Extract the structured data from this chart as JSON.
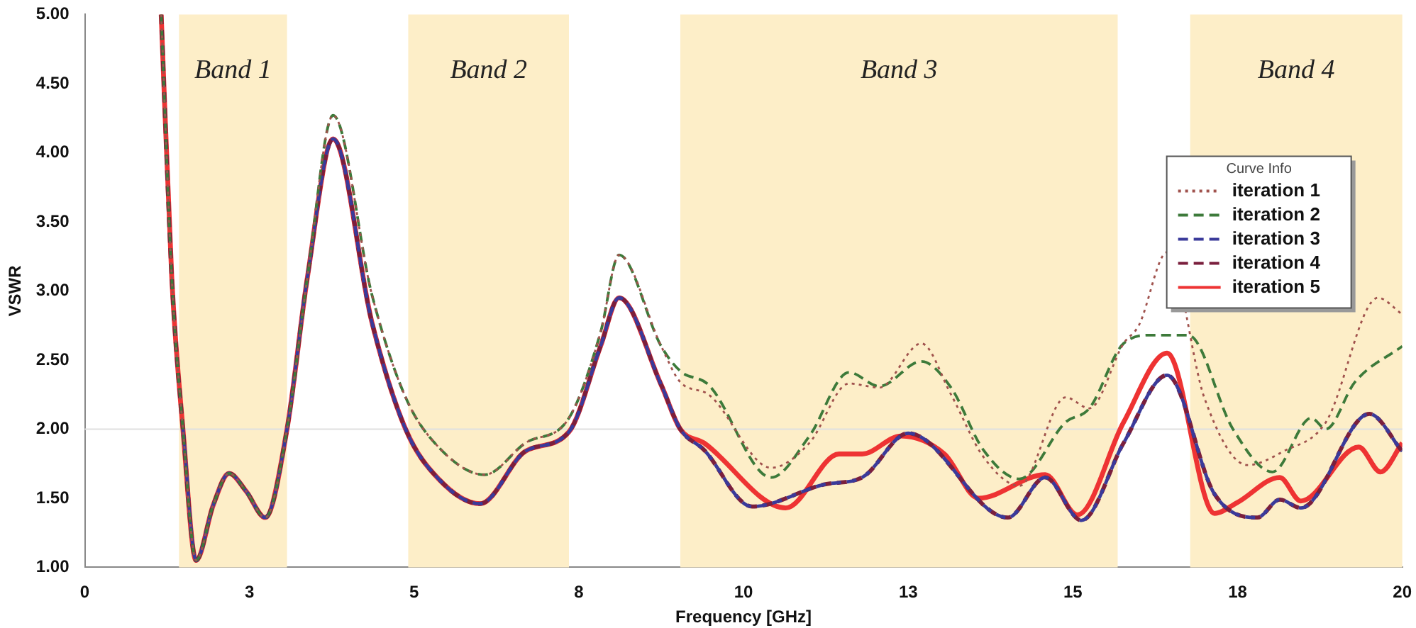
{
  "chart_data": {
    "type": "line",
    "xlabel": "Frequency [GHz]",
    "ylabel": "VSWR",
    "legend_title": "Curve Info",
    "legend": "top right",
    "grid": false,
    "marker": "none",
    "xlim": [
      0,
      20
    ],
    "xticks": [
      0,
      {
        "value": 2.5,
        "label": "3"
      },
      5,
      {
        "value": 7.5,
        "label": "8"
      },
      10,
      {
        "value": 12.5,
        "label": "13"
      },
      15,
      {
        "value": 17.5,
        "label": "18"
      },
      20
    ],
    "ylim": [
      1,
      5
    ],
    "yticks": [
      {
        "value": 1,
        "label": "1.00"
      },
      {
        "value": 1.5,
        "label": "1.50"
      },
      {
        "value": 2,
        "label": "2.00"
      },
      {
        "value": 2.5,
        "label": "2.50"
      },
      {
        "value": 3,
        "label": "3.00"
      },
      {
        "value": 3.5,
        "label": "3.50"
      },
      {
        "value": 4,
        "label": "4.00"
      },
      {
        "value": 4.5,
        "label": "4.50"
      },
      {
        "value": 5,
        "label": "5.00"
      }
    ],
    "bands": [
      {
        "axis": "x",
        "from": 1.43,
        "to": 3.07,
        "label": "Band 1",
        "color": "#fdeec8"
      },
      {
        "axis": "x",
        "from": 4.91,
        "to": 7.35,
        "label": "Band 2",
        "color": "#fdeec8"
      },
      {
        "axis": "x",
        "from": 9.04,
        "to": 15.68,
        "label": "Band 3",
        "color": "#fdeec8"
      },
      {
        "axis": "x",
        "from": 16.78,
        "to": 20,
        "label": "Band 4",
        "color": "#fdeec8"
      }
    ],
    "ref_lines": [
      {
        "axis": "y",
        "value": 2,
        "color": "#e0e0e0"
      }
    ],
    "series": [
      {
        "name": "iteration 1",
        "color": "#a0524d",
        "line_style": "dotted",
        "x": [
          1.16,
          1.32,
          1.49,
          1.69,
          1.95,
          2.19,
          2.45,
          2.74,
          3.07,
          3.38,
          3.77,
          4.36,
          4.87,
          5.37,
          6.07,
          6.69,
          7.35,
          7.83,
          8.11,
          8.75,
          9.04,
          9.47,
          10.42,
          11.0,
          11.6,
          12.06,
          12.7,
          13.15,
          13.64,
          14.19,
          14.89,
          15.25,
          15.77,
          16.0,
          16.43,
          17.0,
          17.65,
          18.2,
          18.84,
          19.63,
          20
        ],
        "values": [
          5.0,
          3.1,
          2.0,
          1.05,
          1.45,
          1.68,
          1.55,
          1.36,
          2.0,
          3.1,
          4.27,
          2.97,
          2.23,
          1.87,
          1.67,
          1.9,
          2.08,
          2.7,
          3.26,
          2.6,
          2.34,
          2.25,
          1.72,
          1.9,
          2.33,
          2.3,
          2.62,
          2.25,
          1.8,
          1.59,
          2.23,
          2.15,
          2.62,
          2.75,
          3.28,
          2.22,
          1.74,
          1.84,
          2.05,
          2.95,
          2.83
        ]
      },
      {
        "name": "iteration 2",
        "color": "#3d7a3a",
        "line_style": "dashed",
        "x": [
          1.16,
          1.32,
          1.49,
          1.69,
          1.95,
          2.19,
          2.45,
          2.74,
          3.07,
          3.38,
          3.77,
          4.36,
          4.87,
          5.37,
          6.07,
          6.69,
          7.35,
          7.83,
          8.11,
          8.75,
          9.04,
          9.47,
          10.42,
          11.0,
          11.6,
          12.06,
          12.7,
          13.15,
          13.64,
          14.19,
          14.89,
          15.25,
          15.77,
          16.2,
          16.75,
          17.43,
          18.03,
          18.62,
          18.84,
          19.28,
          20
        ],
        "values": [
          5.0,
          3.1,
          2.0,
          1.05,
          1.45,
          1.68,
          1.55,
          1.36,
          2.0,
          3.1,
          4.27,
          2.97,
          2.23,
          1.87,
          1.67,
          1.9,
          2.08,
          2.7,
          3.26,
          2.6,
          2.42,
          2.32,
          1.65,
          1.95,
          2.41,
          2.31,
          2.49,
          2.3,
          1.85,
          1.64,
          2.05,
          2.15,
          2.62,
          2.68,
          2.68,
          2.0,
          1.69,
          2.08,
          2.0,
          2.34,
          2.6
        ]
      },
      {
        "name": "iteration 3",
        "color": "#3a3a9a",
        "line_style": "dashed",
        "x": [
          1.49,
          1.69,
          1.95,
          2.19,
          2.45,
          2.74,
          3.07,
          3.38,
          3.77,
          4.36,
          4.87,
          5.37,
          6.0,
          6.69,
          7.35,
          7.83,
          8.11,
          8.75,
          9.04,
          9.4,
          10.13,
          11.23,
          11.8,
          12.5,
          14.01,
          14.58,
          15.13,
          15.77,
          16.43,
          17.15,
          17.8,
          18.14,
          18.46,
          19.5,
          20
        ],
        "values": [
          2.0,
          1.05,
          1.45,
          1.68,
          1.55,
          1.36,
          2.0,
          3.1,
          4.1,
          2.77,
          2.0,
          1.64,
          1.46,
          1.84,
          1.98,
          2.6,
          2.95,
          2.32,
          2.0,
          1.85,
          1.44,
          1.6,
          1.65,
          1.97,
          1.36,
          1.65,
          1.34,
          1.9,
          2.39,
          1.53,
          1.36,
          1.49,
          1.43,
          2.11,
          1.84
        ]
      },
      {
        "name": "iteration 4",
        "color": "#7a1f3d",
        "line_style": "dashed",
        "x": [
          1.16,
          1.32,
          1.49,
          1.69,
          1.95,
          2.19,
          2.45,
          2.74,
          3.07,
          3.38,
          3.77,
          4.36,
          4.87,
          5.37,
          6.0,
          6.69,
          7.35,
          7.83,
          8.11,
          8.75,
          9.04,
          9.4,
          10.13,
          11.23,
          11.8,
          12.5,
          14.01,
          14.58,
          15.13,
          15.77,
          16.43,
          17.15,
          17.8,
          18.14,
          18.46,
          19.5,
          20
        ],
        "values": [
          5.0,
          3.1,
          2.0,
          1.05,
          1.45,
          1.68,
          1.55,
          1.36,
          2.0,
          3.1,
          4.1,
          2.77,
          2.0,
          1.64,
          1.46,
          1.84,
          1.98,
          2.6,
          2.95,
          2.32,
          2.0,
          1.85,
          1.44,
          1.6,
          1.65,
          1.97,
          1.36,
          1.65,
          1.34,
          1.9,
          2.39,
          1.53,
          1.36,
          1.49,
          1.43,
          2.11,
          1.84
        ]
      },
      {
        "name": "iteration 5",
        "color": "#ee3333",
        "line_style": "solid",
        "x": [
          1.16,
          1.32,
          1.49,
          1.69,
          1.95,
          2.19,
          2.45,
          2.74,
          3.07,
          3.38,
          3.77,
          4.36,
          4.87,
          5.37,
          6.0,
          6.69,
          7.35,
          7.83,
          8.11,
          8.75,
          9.04,
          9.4,
          10.64,
          11.45,
          11.8,
          12.39,
          13.05,
          13.57,
          14.58,
          15.07,
          15.77,
          16.43,
          17.15,
          17.5,
          18.14,
          18.46,
          19.34,
          19.67,
          20
        ],
        "values": [
          5.0,
          3.1,
          2.0,
          1.05,
          1.45,
          1.68,
          1.55,
          1.36,
          2.0,
          3.1,
          4.1,
          2.77,
          2.0,
          1.64,
          1.46,
          1.84,
          1.98,
          2.6,
          2.95,
          2.32,
          2.0,
          1.9,
          1.43,
          1.82,
          1.82,
          1.95,
          1.82,
          1.5,
          1.67,
          1.38,
          2.05,
          2.55,
          1.39,
          1.47,
          1.65,
          1.48,
          1.87,
          1.69,
          1.9
        ]
      }
    ]
  }
}
